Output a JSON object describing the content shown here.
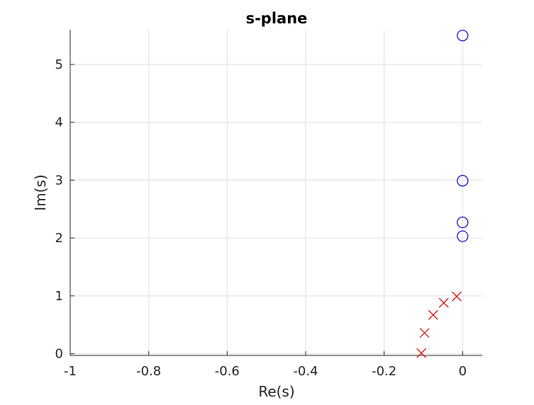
{
  "chart_data": {
    "type": "scatter",
    "title": "s-plane",
    "xlabel": "Re(s)",
    "ylabel": "Im(s)",
    "xlim": [
      -1,
      0.05
    ],
    "ylim": [
      -0.03,
      5.6
    ],
    "grid": true,
    "x_ticks": [
      -1,
      -0.8,
      -0.6,
      -0.4,
      -0.2,
      0
    ],
    "x_tick_labels": [
      "-1",
      "-0.8",
      "-0.6",
      "-0.4",
      "-0.2",
      "0"
    ],
    "y_ticks": [
      0,
      1,
      2,
      3,
      4,
      5
    ],
    "y_tick_labels": [
      "0",
      "1",
      "2",
      "3",
      "4",
      "5"
    ],
    "series": [
      {
        "marker": "o",
        "color": "#0000cc",
        "points": [
          {
            "x": 0,
            "y": 5.5
          },
          {
            "x": 0,
            "y": 2.99
          },
          {
            "x": 0,
            "y": 2.27
          },
          {
            "x": 0,
            "y": 2.03
          }
        ]
      },
      {
        "marker": "x",
        "color": "#dd0000",
        "points": [
          {
            "x": -0.105,
            "y": 0.01
          },
          {
            "x": -0.097,
            "y": 0.36
          },
          {
            "x": -0.075,
            "y": 0.67
          },
          {
            "x": -0.048,
            "y": 0.88
          },
          {
            "x": -0.015,
            "y": 0.99
          }
        ]
      }
    ]
  }
}
